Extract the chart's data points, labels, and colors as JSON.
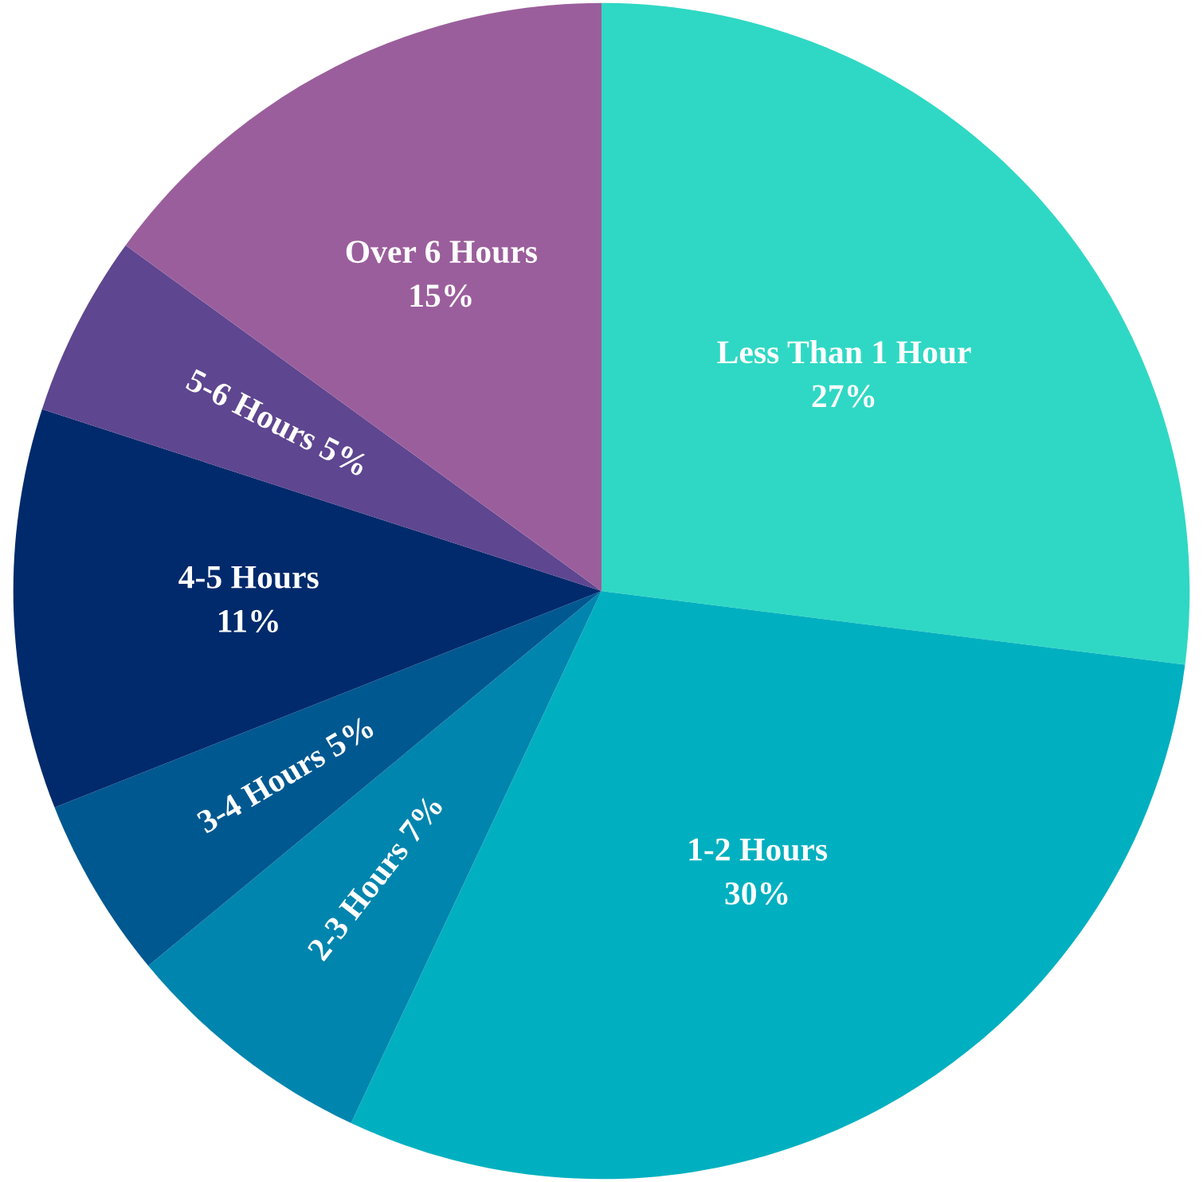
{
  "chart_data": {
    "type": "pie",
    "categories": [
      "Less Than 1 Hour",
      "1-2 Hours",
      "2-3 Hours",
      "3-4 Hours",
      "4-5 Hours",
      "5-6 Hours",
      "Over 6 Hours"
    ],
    "values": [
      27,
      30,
      7,
      5,
      11,
      5,
      15
    ],
    "value_labels": [
      "27%",
      "30%",
      "7%",
      "5%",
      "11%",
      "5%",
      "15%"
    ],
    "colors": [
      "#2fd8c4",
      "#00b0c0",
      "#0085ae",
      "#005890",
      "#002a6c",
      "#5e4690",
      "#9b5e9c"
    ]
  }
}
